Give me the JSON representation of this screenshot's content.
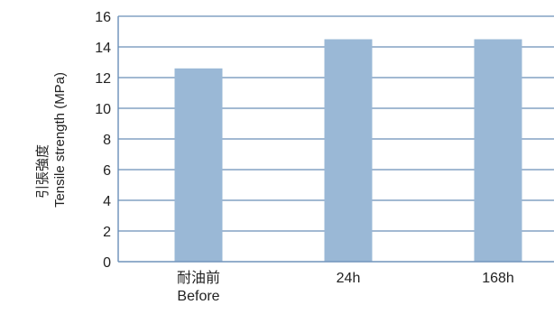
{
  "chart_data": {
    "type": "bar",
    "categories": [
      {
        "line1": "耐油前",
        "line2": "Before"
      },
      {
        "line1": "24h",
        "line2": ""
      },
      {
        "line1": "168h",
        "line2": ""
      }
    ],
    "values": [
      12.6,
      14.5,
      14.5
    ],
    "ylabel_line1": "引張強度",
    "ylabel_line2": "Tensile strength (MPa)",
    "ylim": [
      0,
      16
    ],
    "yticks": [
      0,
      2,
      4,
      6,
      8,
      10,
      12,
      14,
      16
    ],
    "grid": true,
    "colors": {
      "bar": "#9ab8d6",
      "grid": "#6a8fb8",
      "axis": "#6a8fb8"
    }
  }
}
